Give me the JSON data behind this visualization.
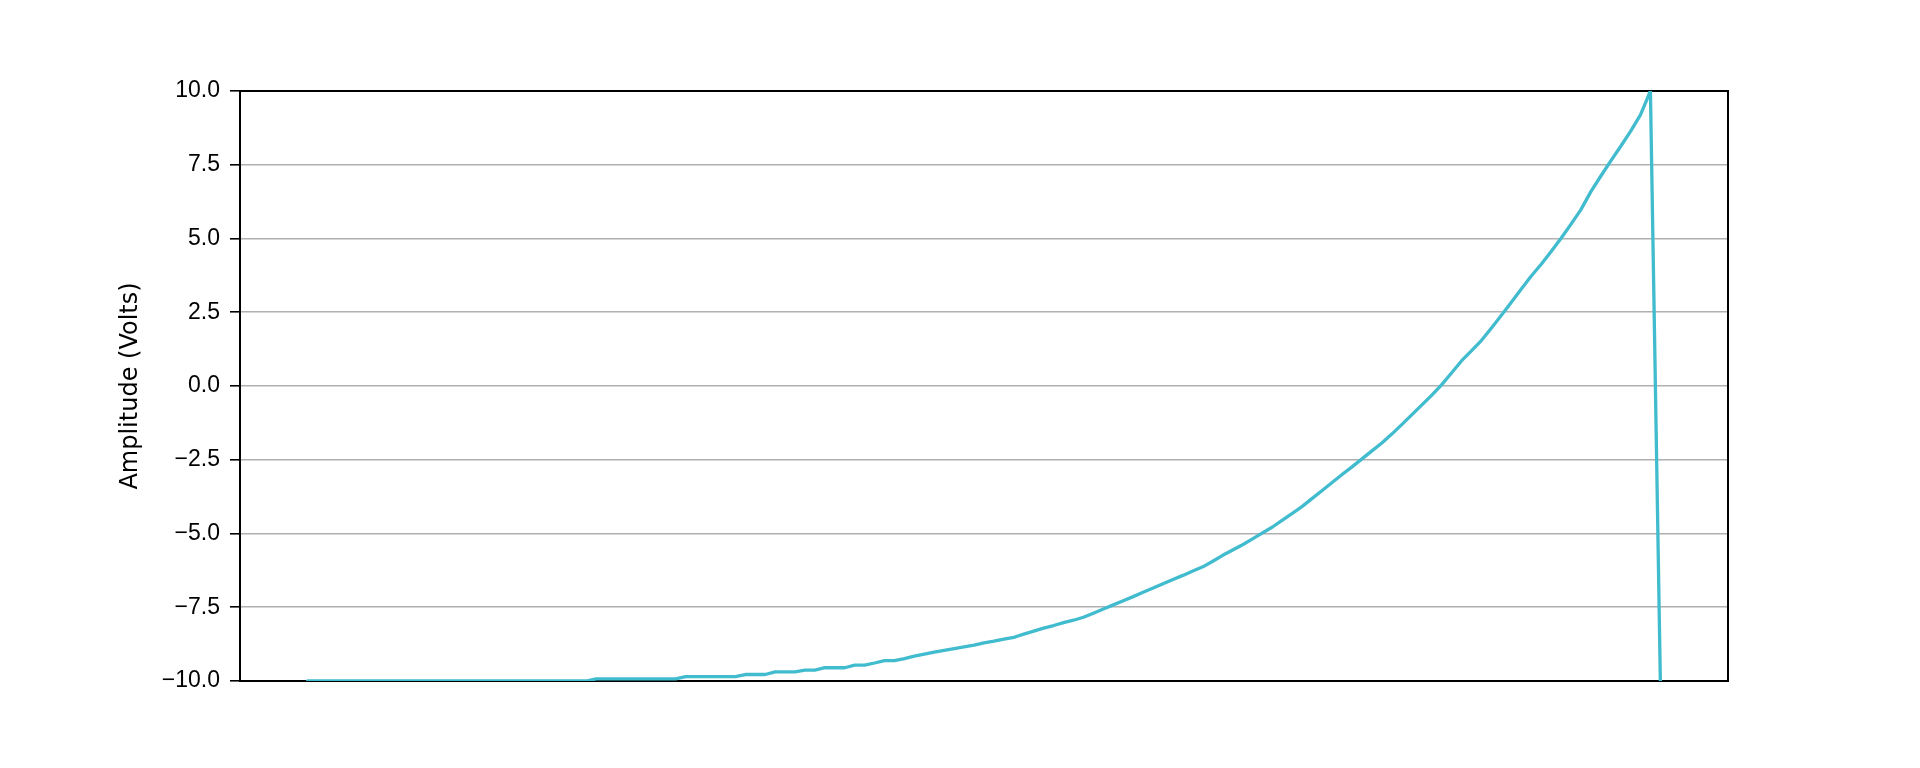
{
  "chart_data": {
    "type": "line",
    "ylabel": "Amplitude (Volts)",
    "categories": [
      null,
      null,
      null,
      null,
      null,
      null,
      null,
      null,
      null,
      null,
      null,
      null,
      null,
      null,
      null,
      null,
      null,
      null,
      null,
      null,
      null,
      null,
      null,
      null,
      null,
      null,
      null,
      null,
      null,
      null,
      null,
      null,
      null,
      null,
      null,
      null,
      null,
      null,
      null,
      null,
      null,
      null,
      null,
      null,
      null,
      null,
      null,
      null,
      null,
      null,
      null,
      null,
      null,
      null,
      null,
      null,
      null,
      null,
      null,
      null,
      null,
      null,
      null,
      null,
      null,
      null,
      null,
      null,
      null,
      null,
      null,
      null,
      null,
      null,
      null,
      null,
      null,
      null,
      null,
      null,
      null,
      null,
      null,
      null,
      null,
      null,
      null,
      null,
      null,
      null,
      null,
      null,
      null,
      null,
      null,
      null,
      null,
      null,
      null,
      null,
      null,
      null,
      null,
      null,
      null,
      null,
      null,
      null,
      null,
      null,
      null,
      null,
      null,
      null,
      null,
      null,
      null,
      null,
      null,
      null,
      null,
      null,
      null,
      null,
      null,
      null,
      null,
      null,
      null,
      null,
      null,
      null,
      null,
      null,
      null,
      null,
      null
    ],
    "values": [
      -10,
      -10,
      -10,
      -10,
      -10,
      -10,
      -10,
      -10,
      -10,
      -10,
      -10,
      -10,
      -10,
      -10,
      -10,
      -10,
      -10,
      -10,
      -10,
      -10,
      -10,
      -10,
      -10,
      -10,
      -10,
      -10,
      -10,
      -10,
      -10,
      -9.93,
      -9.93,
      -9.93,
      -9.93,
      -9.93,
      -9.93,
      -9.93,
      -9.93,
      -9.93,
      -9.85,
      -9.85,
      -9.85,
      -9.85,
      -9.85,
      -9.85,
      -9.78,
      -9.78,
      -9.78,
      -9.69,
      -9.69,
      -9.69,
      -9.63,
      -9.63,
      -9.55,
      -9.55,
      -9.55,
      -9.46,
      -9.46,
      -9.39,
      -9.31,
      -9.31,
      -9.24,
      -9.16,
      -9.09,
      -9.02,
      -8.96,
      -8.9,
      -8.84,
      -8.78,
      -8.71,
      -8.65,
      -8.58,
      -8.52,
      -8.41,
      -8.31,
      -8.21,
      -8.12,
      -8.02,
      -7.94,
      -7.84,
      -7.7,
      -7.56,
      -7.42,
      -7.28,
      -7.14,
      -6.99,
      -6.85,
      -6.7,
      -6.56,
      -6.42,
      -6.27,
      -6.13,
      -5.94,
      -5.74,
      -5.56,
      -5.38,
      -5.18,
      -4.98,
      -4.78,
      -4.55,
      -4.32,
      -4.08,
      -3.81,
      -3.54,
      -3.27,
      -3.0,
      -2.74,
      -2.47,
      -2.2,
      -1.93,
      -1.63,
      -1.31,
      -0.98,
      -0.65,
      -0.32,
      0.04,
      0.44,
      0.85,
      1.19,
      1.54,
      1.96,
      2.39,
      2.83,
      3.28,
      3.72,
      4.12,
      4.55,
      5.0,
      5.48,
      5.97,
      6.58,
      7.11,
      7.62,
      8.12,
      8.63,
      9.19,
      10.0,
      -10
    ],
    "color": "#41bbce",
    "ylim": [
      -10,
      10
    ],
    "yticks": [
      {
        "value": -10,
        "label": "−10.0"
      },
      {
        "value": -7.5,
        "label": "−7.5"
      },
      {
        "value": -5,
        "label": "−5.0"
      },
      {
        "value": -2.5,
        "label": "−2.5"
      },
      {
        "value": 0,
        "label": "0.0"
      },
      {
        "value": 2.5,
        "label": "2.5"
      },
      {
        "value": 5,
        "label": "5.0"
      },
      {
        "value": 7.5,
        "label": "7.5"
      },
      {
        "value": 10,
        "label": "10.0"
      }
    ],
    "grid": "y",
    "legend": false,
    "marker": "none",
    "line_style": "solid",
    "tick_labels": "y"
  }
}
